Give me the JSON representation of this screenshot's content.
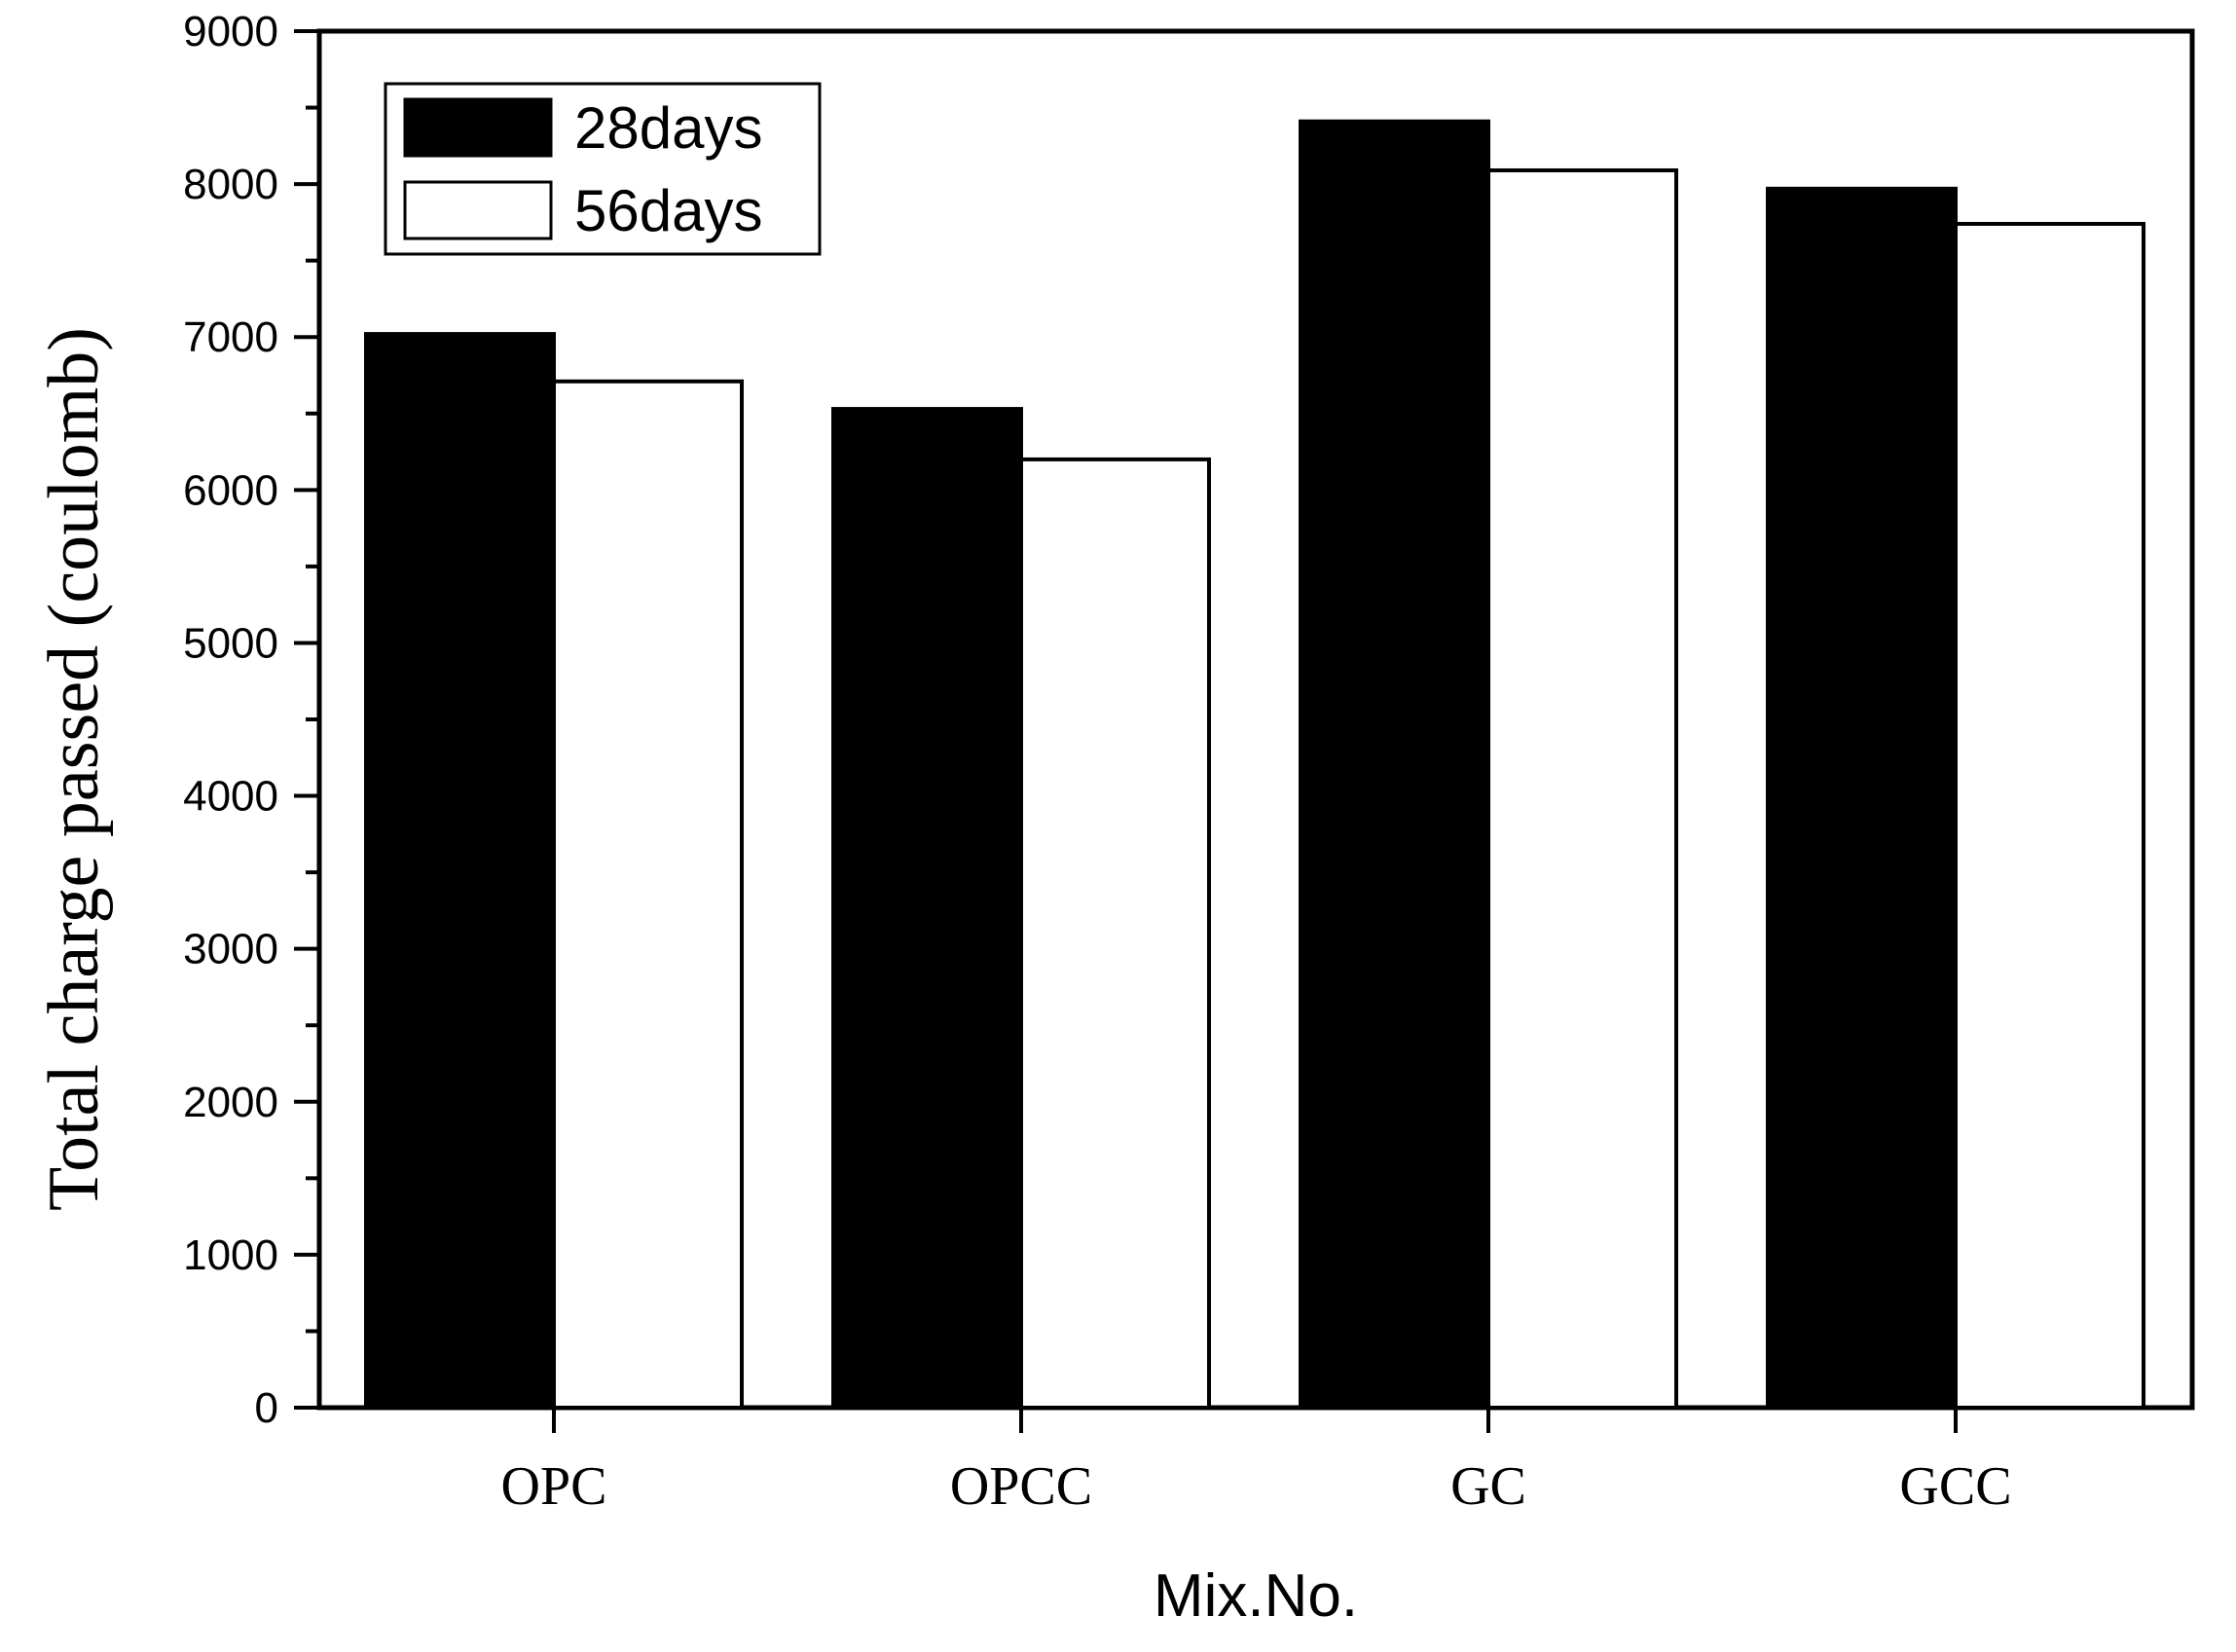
{
  "chart_data": {
    "type": "bar",
    "title": "",
    "xlabel": "Mix.No.",
    "ylabel": "Total charge passed (coulomb)",
    "categories": [
      "OPC",
      "OPCC",
      "GC",
      "GCC"
    ],
    "series": [
      {
        "name": "28days",
        "values": [
          7020,
          6530,
          8410,
          7970
        ],
        "fill": "#000000"
      },
      {
        "name": "56days",
        "values": [
          6710,
          6200,
          8090,
          7740
        ],
        "fill": "#ffffff"
      }
    ],
    "ylim": [
      0,
      9000
    ],
    "yticks": [
      0,
      1000,
      2000,
      3000,
      4000,
      5000,
      6000,
      7000,
      8000,
      9000
    ],
    "ytick_labels": [
      "0",
      "1000",
      "2000",
      "3000",
      "4000",
      "5000",
      "6000",
      "7000",
      "8000",
      "9000"
    ],
    "minor_tick_step": 500,
    "grid": false,
    "legend_position": "top-left"
  }
}
